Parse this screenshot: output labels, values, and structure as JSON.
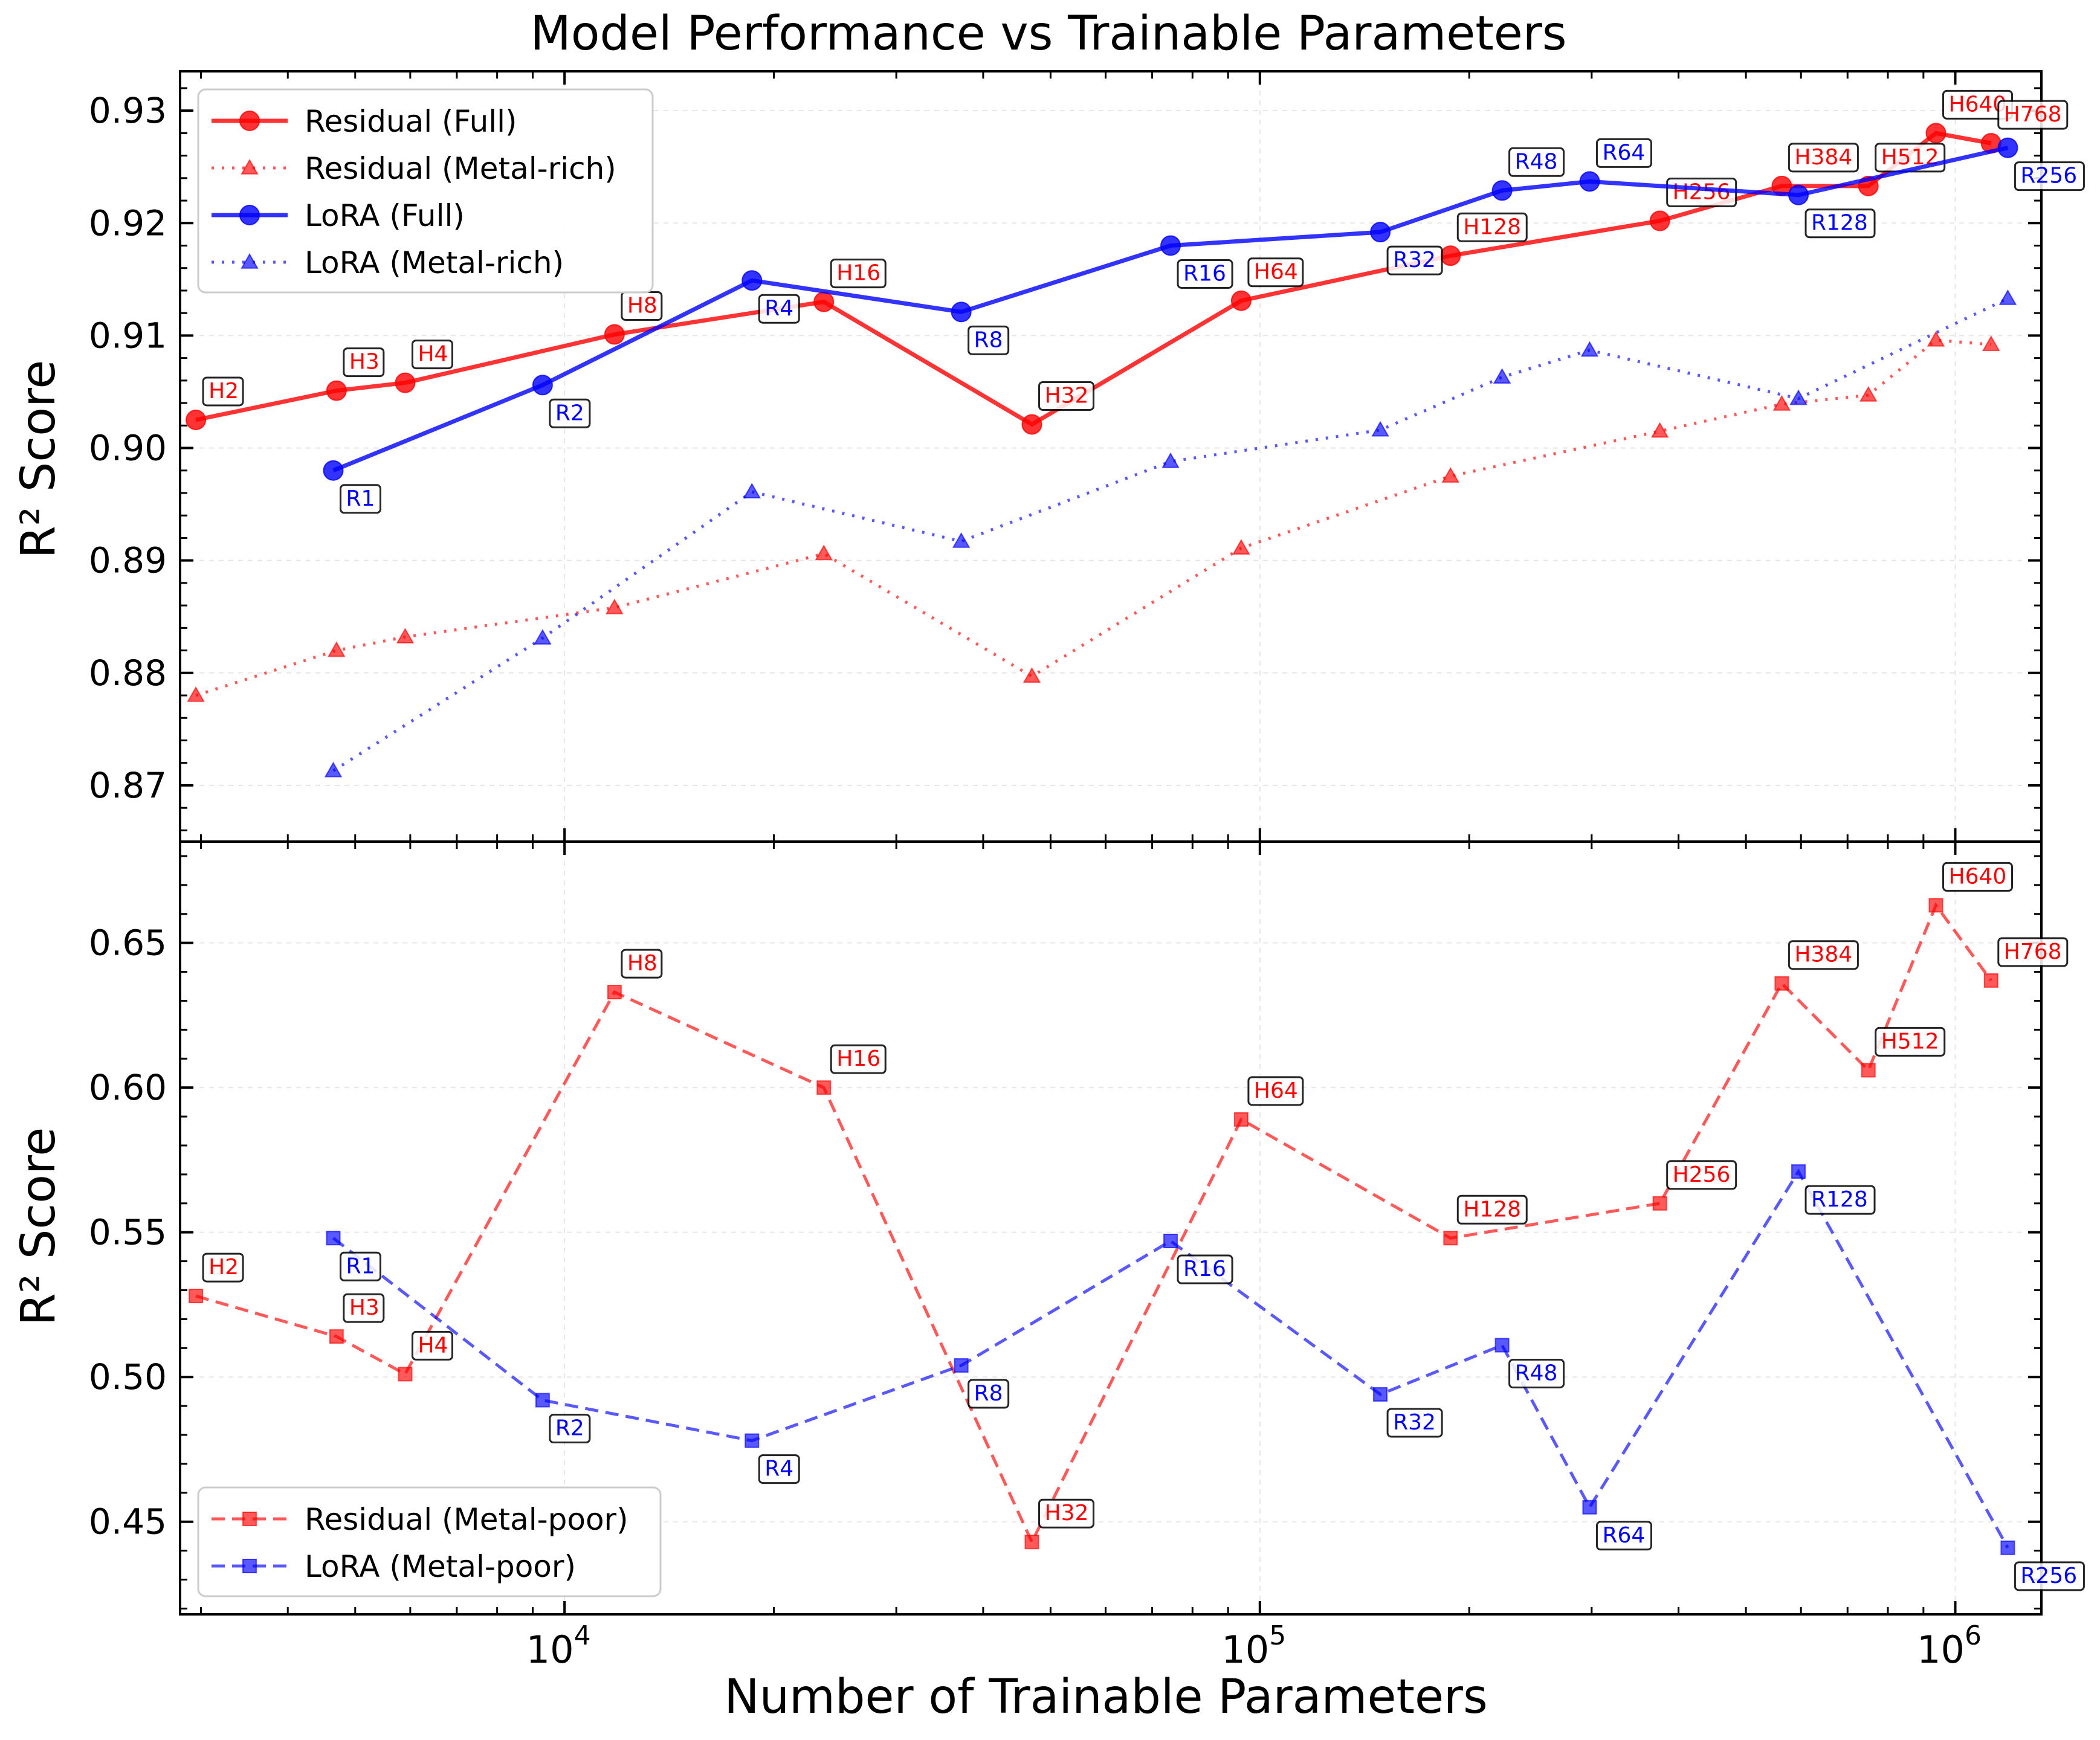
{
  "chart_data": {
    "type": "line",
    "title": "Model Performance vs Trainable Parameters",
    "xlabel": "Number of Trainable Parameters",
    "xscale": "log",
    "xlim": [
      2800,
      1330000
    ],
    "x_ticks": [
      {
        "base": "10",
        "exp": "4",
        "value": 10000
      },
      {
        "base": "10",
        "exp": "5",
        "value": 100000
      },
      {
        "base": "10",
        "exp": "6",
        "value": 1000000
      }
    ],
    "colors": {
      "residual": "#ff0000",
      "lora": "#0000ff"
    },
    "panels": [
      {
        "id": "top",
        "ylabel": "R² Score",
        "ylim": [
          0.865,
          0.9335
        ],
        "yticks": [
          "0.87",
          "0.88",
          "0.89",
          "0.90",
          "0.91",
          "0.92",
          "0.93"
        ],
        "legend": {
          "position": "upper-left"
        },
        "series": [
          {
            "name": "Residual (Full)",
            "color": "#ff0000",
            "style": "solid",
            "marker": "circle",
            "labels": [
              "H2",
              "H3",
              "H4",
              "H8",
              "H16",
              "H32",
              "H64",
              "H128",
              "H256",
              "H384",
              "H512",
              "H640",
              "H768"
            ],
            "x": [
              2950,
              4700,
              5900,
              11800,
              23600,
              47000,
              94000,
              188000,
              376000,
              563000,
              750000,
              938000,
              1126000
            ],
            "y": [
              0.9025,
              0.9051,
              0.9058,
              0.9101,
              0.913,
              0.9021,
              0.9131,
              0.9171,
              0.9202,
              0.9233,
              0.9233,
              0.928,
              0.9271
            ],
            "label_side": [
              "right",
              "right",
              "right",
              "right",
              "right",
              "right",
              "right",
              "right",
              "right",
              "right",
              "right",
              "right",
              "right"
            ]
          },
          {
            "name": "Residual (Metal-rich)",
            "color": "#ff0000",
            "style": "dotted",
            "marker": "triangle",
            "x": [
              2950,
              4700,
              5900,
              11800,
              23600,
              47000,
              94000,
              188000,
              376000,
              563000,
              750000,
              938000,
              1126000
            ],
            "y": [
              0.878,
              0.882,
              0.8832,
              0.8858,
              0.8906,
              0.8797,
              0.8911,
              0.8975,
              0.9015,
              0.9039,
              0.9047,
              0.9096,
              0.9092
            ]
          },
          {
            "name": "LoRA (Full)",
            "color": "#0000ff",
            "style": "solid",
            "marker": "circle",
            "labels": [
              "R1",
              "R2",
              "R4",
              "R8",
              "R16",
              "R32",
              "R48",
              "R64",
              "R128",
              "R256"
            ],
            "x": [
              4650,
              9300,
              18600,
              37200,
              74400,
              149000,
              223000,
              298000,
              595000,
              1190000
            ],
            "y": [
              0.898,
              0.9056,
              0.9149,
              0.9121,
              0.918,
              0.9192,
              0.9229,
              0.9237,
              0.9225,
              0.9267
            ],
            "label_side": [
              "below",
              "below",
              "below",
              "below",
              "below",
              "below",
              "above",
              "above",
              "below",
              "below"
            ]
          },
          {
            "name": "LoRA (Metal-rich)",
            "color": "#0000ff",
            "style": "dotted",
            "marker": "triangle",
            "x": [
              4650,
              9300,
              18600,
              37200,
              74400,
              149000,
              223000,
              298000,
              595000,
              1190000
            ],
            "y": [
              0.8713,
              0.8831,
              0.8961,
              0.8917,
              0.8988,
              0.9016,
              0.9063,
              0.9087,
              0.9044,
              0.9133
            ]
          }
        ]
      },
      {
        "id": "bottom",
        "ylabel": "R² Score",
        "ylim": [
          0.418,
          0.685
        ],
        "yticks": [
          "0.45",
          "0.50",
          "0.55",
          "0.60",
          "0.65"
        ],
        "legend": {
          "position": "lower-left"
        },
        "series": [
          {
            "name": "Residual (Metal-poor)",
            "color": "#ff0000",
            "style": "dashed",
            "marker": "square",
            "labels": [
              "H2",
              "H3",
              "H4",
              "H8",
              "H16",
              "H32",
              "H64",
              "H128",
              "H256",
              "H384",
              "H512",
              "H640",
              "H768"
            ],
            "x": [
              2950,
              4700,
              5900,
              11800,
              23600,
              47000,
              94000,
              188000,
              376000,
              563000,
              750000,
              938000,
              1126000
            ],
            "y": [
              0.528,
              0.514,
              0.501,
              0.633,
              0.6,
              0.443,
              0.589,
              0.548,
              0.56,
              0.636,
              0.606,
              0.663,
              0.637
            ],
            "label_side": [
              "right",
              "right",
              "right",
              "right",
              "right",
              "right",
              "right",
              "right",
              "right",
              "right",
              "right",
              "right",
              "right"
            ]
          },
          {
            "name": "LoRA (Metal-poor)",
            "color": "#0000ff",
            "style": "dashed",
            "marker": "square",
            "labels": [
              "R1",
              "R2",
              "R4",
              "R8",
              "R16",
              "R32",
              "R48",
              "R64",
              "R128",
              "R256"
            ],
            "x": [
              4650,
              9300,
              18600,
              37200,
              74400,
              149000,
              223000,
              298000,
              595000,
              1190000
            ],
            "y": [
              0.548,
              0.492,
              0.478,
              0.504,
              0.547,
              0.494,
              0.511,
              0.455,
              0.571,
              0.441
            ],
            "label_side": [
              "below",
              "below",
              "below",
              "below",
              "below",
              "below",
              "below",
              "below",
              "below",
              "below"
            ]
          }
        ]
      }
    ]
  }
}
